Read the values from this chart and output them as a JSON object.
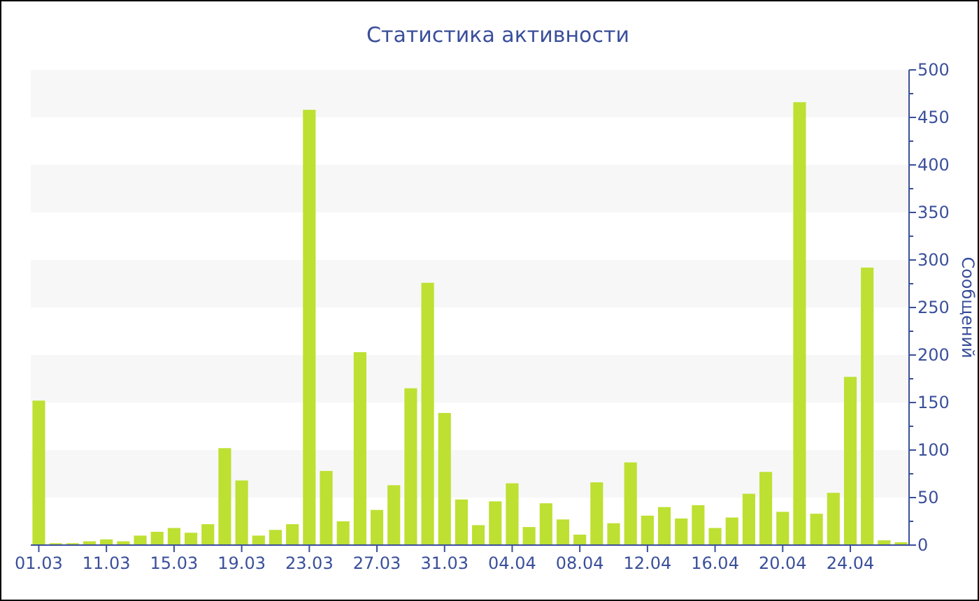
{
  "chart_data": {
    "type": "bar",
    "title": "Статистика активности",
    "ylabel": "Сообщений",
    "categories": [
      "01.03",
      null,
      null,
      null,
      "11.03",
      null,
      null,
      null,
      "15.03",
      null,
      null,
      null,
      "19.03",
      null,
      null,
      null,
      "23.03",
      null,
      null,
      null,
      "27.03",
      null,
      null,
      null,
      "31.03",
      null,
      null,
      null,
      "04.04",
      null,
      null,
      null,
      "08.04",
      null,
      null,
      null,
      "12.04",
      null,
      null,
      null,
      "16.04",
      null,
      null,
      null,
      "20.04",
      null,
      null,
      null,
      "24.04",
      null,
      null,
      null
    ],
    "values": [
      152,
      2,
      2,
      4,
      6,
      4,
      10,
      14,
      18,
      13,
      22,
      102,
      68,
      10,
      16,
      22,
      458,
      78,
      25,
      203,
      37,
      63,
      165,
      276,
      139,
      48,
      21,
      46,
      65,
      19,
      44,
      27,
      11,
      66,
      23,
      87,
      31,
      40,
      28,
      42,
      18,
      29,
      54,
      77,
      35,
      466,
      33,
      55,
      177,
      292,
      5,
      3
    ],
    "color": "#bde032",
    "ylim": [
      0,
      500
    ],
    "yticks": [
      0,
      {
        "value": 25,
        "label": null
      },
      50,
      {
        "value": 75,
        "label": null
      },
      100,
      {
        "value": 125,
        "label": null
      },
      150,
      {
        "value": 175,
        "label": null
      },
      200,
      {
        "value": 225,
        "label": null
      },
      250,
      {
        "value": 275,
        "label": null
      },
      300,
      {
        "value": 325,
        "label": null
      },
      350,
      {
        "value": 375,
        "label": null
      },
      400,
      {
        "value": 425,
        "label": null
      },
      450,
      {
        "value": 475,
        "label": null
      },
      500
    ],
    "bands": [
      {
        "axis": "y",
        "from": 50,
        "to": 100,
        "color": "#f7f7f7"
      },
      {
        "axis": "y",
        "from": 150,
        "to": 200,
        "color": "#f7f7f7"
      },
      {
        "axis": "y",
        "from": 250,
        "to": 300,
        "color": "#f7f7f7"
      },
      {
        "axis": "y",
        "from": 350,
        "to": 400,
        "color": "#f7f7f7"
      },
      {
        "axis": "y",
        "from": 450,
        "to": 500,
        "color": "#f7f7f7"
      }
    ]
  }
}
